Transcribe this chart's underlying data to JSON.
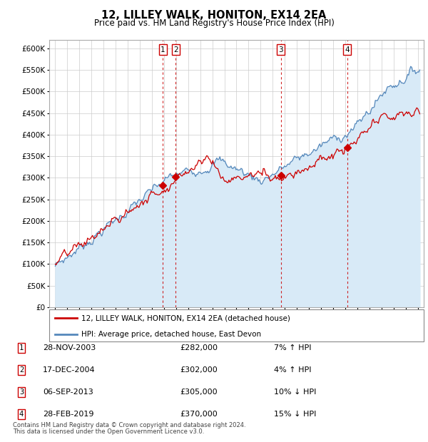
{
  "title": "12, LILLEY WALK, HONITON, EX14 2EA",
  "subtitle": "Price paid vs. HM Land Registry's House Price Index (HPI)",
  "legend_line1": "12, LILLEY WALK, HONITON, EX14 2EA (detached house)",
  "legend_line2": "HPI: Average price, detached house, East Devon",
  "footer_line1": "Contains HM Land Registry data © Crown copyright and database right 2024.",
  "footer_line2": "This data is licensed under the Open Government Licence v3.0.",
  "ylim": [
    0,
    620000
  ],
  "yticks": [
    0,
    50000,
    100000,
    150000,
    200000,
    250000,
    300000,
    350000,
    400000,
    450000,
    500000,
    550000,
    600000
  ],
  "xmin": 1994.5,
  "xmax": 2025.5,
  "sale_points": [
    {
      "num": 1,
      "date_x": 2003.91,
      "price": 282000,
      "label": "28-NOV-2003",
      "price_str": "£282,000",
      "hpi_str": "7% ↑ HPI"
    },
    {
      "num": 2,
      "date_x": 2004.96,
      "price": 302000,
      "label": "17-DEC-2004",
      "price_str": "£302,000",
      "hpi_str": "4% ↑ HPI"
    },
    {
      "num": 3,
      "date_x": 2013.68,
      "price": 305000,
      "label": "06-SEP-2013",
      "price_str": "£305,000",
      "hpi_str": "10% ↓ HPI"
    },
    {
      "num": 4,
      "date_x": 2019.16,
      "price": 370000,
      "label": "28-FEB-2019",
      "price_str": "£370,000",
      "hpi_str": "15% ↓ HPI"
    }
  ],
  "sale_color": "#cc0000",
  "hpi_color": "#5588bb",
  "hpi_fill_color": "#d8eaf7",
  "vline_color": "#cc0000",
  "box_edge_color": "#cc0000"
}
